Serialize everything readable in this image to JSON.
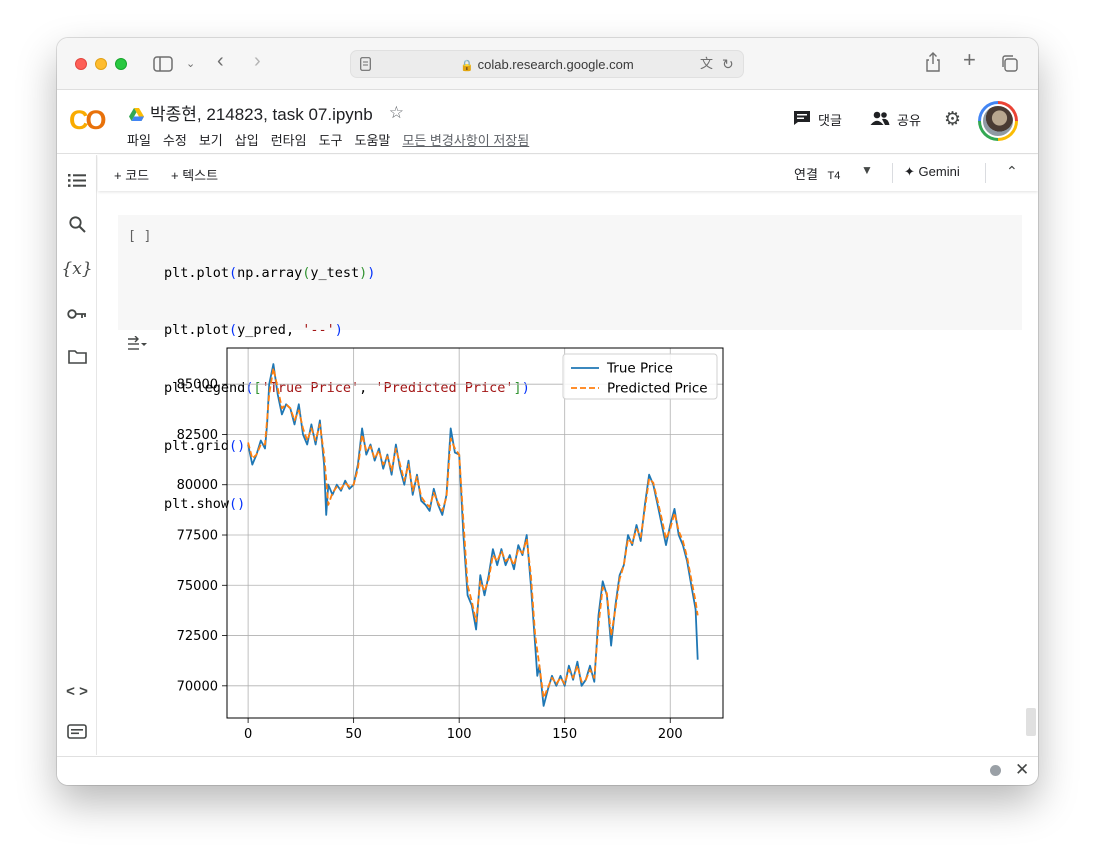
{
  "browser": {
    "url": "colab.research.google.com"
  },
  "colab": {
    "title": "박종현, 214823, task 07.ipynb",
    "menu": [
      "파일",
      "수정",
      "보기",
      "삽입",
      "런타임",
      "도구",
      "도움말"
    ],
    "save_status": "모든 변경사항이 저장됨",
    "comment_label": "댓글",
    "share_label": "공유",
    "toolbar": {
      "add_code": "+ 코드",
      "add_text": "+ 텍스트",
      "connect": "연결",
      "runtime": "T4",
      "gemini": "Gemini"
    }
  },
  "cell": {
    "bracket": "[ ]",
    "lines": [
      "plt.plot(np.array(y_test))",
      "plt.plot(y_pred, '--')",
      "plt.legend(['True Price', 'Predicted Price'])",
      "plt.grid()",
      "plt.show()"
    ]
  },
  "chart_data": {
    "type": "line",
    "grid": true,
    "legend_position": "top-right",
    "xlim": [
      -10,
      225
    ],
    "ylim": [
      68400,
      86800
    ],
    "x_ticks": [
      0,
      50,
      100,
      150,
      200
    ],
    "y_ticks": [
      70000,
      72500,
      75000,
      77500,
      80000,
      82500,
      85000
    ],
    "y_tick_labels": [
      "70000",
      "72500",
      "75000",
      "77500",
      "80000",
      "82500",
      "85000"
    ],
    "x_tick_labels": [
      "0",
      "50",
      "100",
      "150",
      "200"
    ],
    "series": [
      {
        "name": "True Price",
        "color": "#1f77b4",
        "style": "solid",
        "points": [
          [
            0,
            82000
          ],
          [
            2,
            81000
          ],
          [
            4,
            81500
          ],
          [
            6,
            82200
          ],
          [
            8,
            81800
          ],
          [
            9,
            83000
          ],
          [
            10,
            85000
          ],
          [
            12,
            86000
          ],
          [
            14,
            84500
          ],
          [
            16,
            83500
          ],
          [
            18,
            84000
          ],
          [
            20,
            83800
          ],
          [
            22,
            83000
          ],
          [
            24,
            84000
          ],
          [
            26,
            82500
          ],
          [
            28,
            82000
          ],
          [
            30,
            83000
          ],
          [
            32,
            82000
          ],
          [
            34,
            83200
          ],
          [
            36,
            81000
          ],
          [
            37,
            78500
          ],
          [
            38,
            80000
          ],
          [
            40,
            79500
          ],
          [
            42,
            80000
          ],
          [
            44,
            79700
          ],
          [
            46,
            80200
          ],
          [
            48,
            79800
          ],
          [
            50,
            80000
          ],
          [
            52,
            81000
          ],
          [
            54,
            82800
          ],
          [
            56,
            81500
          ],
          [
            58,
            82000
          ],
          [
            60,
            81200
          ],
          [
            62,
            81800
          ],
          [
            64,
            80800
          ],
          [
            66,
            81500
          ],
          [
            68,
            80500
          ],
          [
            70,
            82000
          ],
          [
            72,
            80800
          ],
          [
            74,
            80000
          ],
          [
            76,
            81200
          ],
          [
            78,
            79500
          ],
          [
            80,
            80500
          ],
          [
            82,
            79200
          ],
          [
            84,
            79000
          ],
          [
            86,
            78700
          ],
          [
            88,
            79800
          ],
          [
            90,
            79000
          ],
          [
            92,
            78500
          ],
          [
            94,
            79500
          ],
          [
            96,
            82800
          ],
          [
            98,
            81600
          ],
          [
            100,
            81500
          ],
          [
            102,
            77500
          ],
          [
            104,
            74500
          ],
          [
            106,
            74000
          ],
          [
            108,
            72800
          ],
          [
            110,
            75500
          ],
          [
            112,
            74500
          ],
          [
            114,
            75500
          ],
          [
            116,
            76800
          ],
          [
            118,
            76000
          ],
          [
            120,
            76800
          ],
          [
            122,
            76000
          ],
          [
            124,
            76500
          ],
          [
            126,
            75800
          ],
          [
            128,
            77000
          ],
          [
            130,
            76500
          ],
          [
            132,
            77500
          ],
          [
            134,
            75000
          ],
          [
            136,
            72000
          ],
          [
            137,
            70500
          ],
          [
            138,
            71000
          ],
          [
            140,
            69000
          ],
          [
            142,
            69800
          ],
          [
            144,
            70500
          ],
          [
            146,
            70000
          ],
          [
            148,
            70500
          ],
          [
            150,
            70000
          ],
          [
            152,
            71000
          ],
          [
            154,
            70300
          ],
          [
            156,
            71200
          ],
          [
            158,
            70000
          ],
          [
            160,
            70300
          ],
          [
            162,
            71000
          ],
          [
            164,
            70200
          ],
          [
            166,
            73500
          ],
          [
            168,
            75200
          ],
          [
            170,
            74500
          ],
          [
            172,
            72000
          ],
          [
            174,
            74000
          ],
          [
            176,
            75500
          ],
          [
            178,
            76000
          ],
          [
            180,
            77500
          ],
          [
            182,
            77000
          ],
          [
            184,
            78000
          ],
          [
            186,
            77200
          ],
          [
            188,
            79000
          ],
          [
            190,
            80500
          ],
          [
            192,
            80000
          ],
          [
            194,
            79000
          ],
          [
            196,
            78000
          ],
          [
            198,
            77000
          ],
          [
            200,
            78000
          ],
          [
            202,
            78800
          ],
          [
            204,
            77500
          ],
          [
            206,
            77000
          ],
          [
            208,
            76200
          ],
          [
            210,
            75000
          ],
          [
            212,
            73800
          ],
          [
            213,
            71300
          ]
        ]
      },
      {
        "name": "Predicted Price",
        "color": "#ff7f0e",
        "style": "dashed",
        "points": [
          [
            0,
            82100
          ],
          [
            2,
            81300
          ],
          [
            4,
            81500
          ],
          [
            6,
            82000
          ],
          [
            8,
            82000
          ],
          [
            10,
            84500
          ],
          [
            12,
            85800
          ],
          [
            14,
            84800
          ],
          [
            16,
            83800
          ],
          [
            18,
            84000
          ],
          [
            20,
            83800
          ],
          [
            22,
            83200
          ],
          [
            24,
            83700
          ],
          [
            26,
            82800
          ],
          [
            28,
            82200
          ],
          [
            30,
            82800
          ],
          [
            32,
            82200
          ],
          [
            34,
            83000
          ],
          [
            36,
            81500
          ],
          [
            38,
            79000
          ],
          [
            40,
            79600
          ],
          [
            42,
            79900
          ],
          [
            44,
            79800
          ],
          [
            46,
            80100
          ],
          [
            48,
            79900
          ],
          [
            50,
            80000
          ],
          [
            52,
            80800
          ],
          [
            54,
            82500
          ],
          [
            56,
            81700
          ],
          [
            58,
            81900
          ],
          [
            60,
            81300
          ],
          [
            62,
            81700
          ],
          [
            64,
            81000
          ],
          [
            66,
            81400
          ],
          [
            68,
            80700
          ],
          [
            70,
            81800
          ],
          [
            72,
            81000
          ],
          [
            74,
            80200
          ],
          [
            76,
            81000
          ],
          [
            78,
            79700
          ],
          [
            80,
            80400
          ],
          [
            82,
            79400
          ],
          [
            84,
            79100
          ],
          [
            86,
            78900
          ],
          [
            88,
            79600
          ],
          [
            90,
            79100
          ],
          [
            92,
            78700
          ],
          [
            94,
            79400
          ],
          [
            96,
            82300
          ],
          [
            98,
            81800
          ],
          [
            100,
            81500
          ],
          [
            102,
            78200
          ],
          [
            104,
            75000
          ],
          [
            106,
            74200
          ],
          [
            108,
            73200
          ],
          [
            110,
            75200
          ],
          [
            112,
            74700
          ],
          [
            114,
            75300
          ],
          [
            116,
            76500
          ],
          [
            118,
            76200
          ],
          [
            120,
            76700
          ],
          [
            122,
            76200
          ],
          [
            124,
            76400
          ],
          [
            126,
            76000
          ],
          [
            128,
            76800
          ],
          [
            130,
            76600
          ],
          [
            132,
            77300
          ],
          [
            134,
            75500
          ],
          [
            136,
            72500
          ],
          [
            138,
            71000
          ],
          [
            140,
            69400
          ],
          [
            142,
            69900
          ],
          [
            144,
            70400
          ],
          [
            146,
            70100
          ],
          [
            148,
            70400
          ],
          [
            150,
            70100
          ],
          [
            152,
            70800
          ],
          [
            154,
            70400
          ],
          [
            156,
            71000
          ],
          [
            158,
            70200
          ],
          [
            160,
            70300
          ],
          [
            162,
            70800
          ],
          [
            164,
            70400
          ],
          [
            166,
            73000
          ],
          [
            168,
            74900
          ],
          [
            170,
            74600
          ],
          [
            172,
            72500
          ],
          [
            174,
            73800
          ],
          [
            176,
            75300
          ],
          [
            178,
            76000
          ],
          [
            180,
            77300
          ],
          [
            182,
            77100
          ],
          [
            184,
            77800
          ],
          [
            186,
            77400
          ],
          [
            188,
            78800
          ],
          [
            190,
            80300
          ],
          [
            192,
            80100
          ],
          [
            194,
            79200
          ],
          [
            196,
            78300
          ],
          [
            198,
            77300
          ],
          [
            200,
            77800
          ],
          [
            202,
            78600
          ],
          [
            204,
            77700
          ],
          [
            206,
            77200
          ],
          [
            208,
            76400
          ],
          [
            210,
            75300
          ],
          [
            212,
            74200
          ],
          [
            213,
            73500
          ]
        ]
      }
    ]
  }
}
